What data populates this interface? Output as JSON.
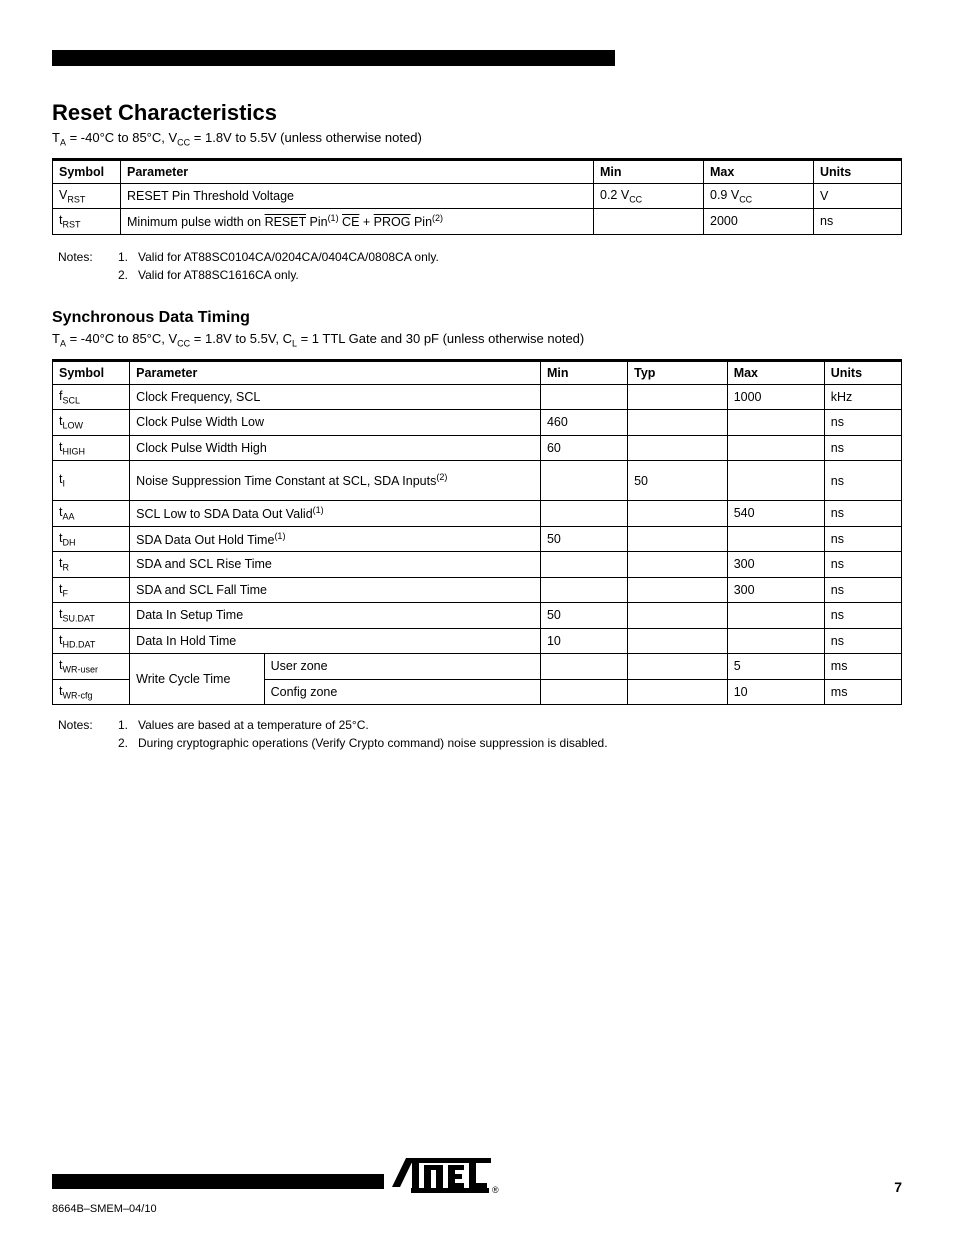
{
  "page": {
    "top_rule_color": "#000000",
    "section_title": "Reset Characteristics",
    "table1": {
      "conditions_html": "T<sub>A</sub> = -40°C to 85°C, V<sub>CC</sub> = 1.8V to 5.5V (unless otherwise noted)",
      "columns": [
        "Symbol",
        "Parameter",
        "Min",
        "Max",
        "Units"
      ],
      "rows": [
        {
          "sym": "V<sub>RST</sub>",
          "param": "RESET Pin Threshold Voltage",
          "min": "0.2 V<sub>CC</sub>",
          "max": "0.9 V<sub>CC</sub>",
          "unit": "V"
        },
        {
          "sym": "t<sub>RST</sub>",
          "param_html": "Minimum pulse width on <span class=\"overline\">RESET</span> Pin<sup>(1)</sup>   <span class=\"overline\">CE</span> + <span class=\"overline\">PROG</span> Pin<sup>(2)</sup>",
          "min": "",
          "max": "2000",
          "unit": "ns"
        }
      ],
      "notes": [
        "Valid for AT88SC0104CA/0204CA/0404CA/0808CA only.",
        "Valid for AT88SC1616CA only."
      ]
    },
    "heading2": "Synchronous Data Timing",
    "table2": {
      "conditions_html": "T<sub>A</sub> = -40°C to 85°C, V<sub>CC</sub> = 1.8V to 5.5V, C<sub>L</sub> = 1 TTL Gate and 30 pF (unless otherwise noted)",
      "columns": [
        "Symbol",
        "Parameter",
        "",
        "Min",
        "Typ",
        "Max",
        "Units"
      ],
      "rows": [
        {
          "sym": "f<sub>SCL</sub>",
          "param": "Clock Frequency, SCL",
          "min": "",
          "typ": "",
          "max": "1000",
          "unit": "kHz"
        },
        {
          "sym": "t<sub>LOW</sub>",
          "param": "Clock Pulse Width Low",
          "min": "460",
          "typ": "",
          "max": "",
          "unit": "ns"
        },
        {
          "sym": "t<sub>HIGH</sub>",
          "param": "Clock Pulse Width High",
          "min": "60",
          "typ": "",
          "max": "",
          "unit": "ns"
        },
        {
          "sym": "t<sub>I</sub>",
          "param_html": "Noise Suppression Time Constant at SCL, SDA Inputs<sup>(2)</sup>",
          "min": "",
          "typ": "50",
          "max": "",
          "unit": "ns",
          "tall": true
        },
        {
          "sym": "t<sub>AA</sub>",
          "param_html": "SCL Low to SDA Data Out Valid<sup>(1)</sup>",
          "min": "",
          "typ": "",
          "max": "540",
          "unit": "ns"
        },
        {
          "sym": "t<sub>DH</sub>",
          "param_html": "SDA Data Out Hold Time<sup>(1)</sup>",
          "min": "50",
          "typ": "",
          "max": "",
          "unit": "ns"
        },
        {
          "sym": "t<sub>R</sub>",
          "param": "SDA and SCL Rise Time",
          "min": "",
          "typ": "",
          "max": "300",
          "unit": "ns"
        },
        {
          "sym": "t<sub>F</sub>",
          "param": "SDA and SCL Fall Time",
          "min": "",
          "typ": "",
          "max": "300",
          "unit": "ns"
        },
        {
          "sym": "t<sub>SU.DAT</sub>",
          "param": "Data In Setup Time",
          "min": "50",
          "typ": "",
          "max": "",
          "unit": "ns"
        },
        {
          "sym": "t<sub>HD.DAT</sub>",
          "param": "Data In Hold Time",
          "min": "10",
          "typ": "",
          "max": "",
          "unit": "ns"
        },
        {
          "sym": "t<sub>WR-user</sub>",
          "rowspan_param": "Write Cycle Time",
          "sub": "User zone",
          "min": "",
          "typ": "",
          "max": "5",
          "unit": "ms"
        },
        {
          "sym": "t<sub>WR-cfg</sub>",
          "sub": "Config zone",
          "min": "",
          "typ": "",
          "max": "10",
          "unit": "ms"
        }
      ],
      "notes": [
        "Values are based at a temperature of 25°C.",
        "During cryptographic operations (Verify Crypto command) noise suppression is disabled."
      ]
    },
    "footer": {
      "page_number": "7",
      "doc_ref": "8664B–SMEM–04/10"
    },
    "colors": {
      "text": "#000000",
      "bg": "#ffffff",
      "rules": "#000000"
    },
    "fonts": {
      "body_pt": 13,
      "heading_pt": 22,
      "heading2_pt": 16,
      "notes_pt": 12
    }
  }
}
